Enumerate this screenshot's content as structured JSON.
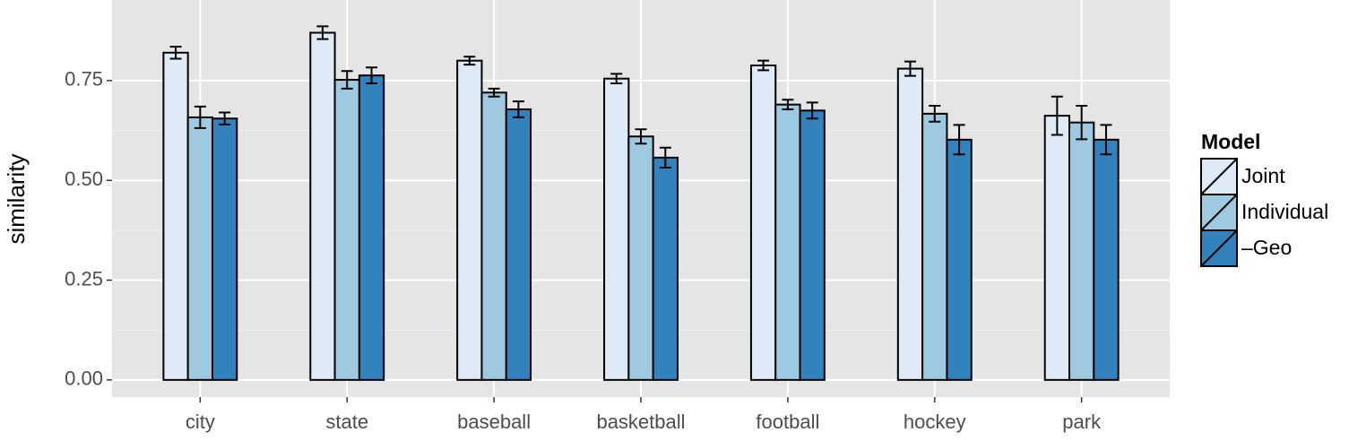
{
  "chart_data": {
    "type": "bar",
    "y_label": "similarity",
    "categories": [
      "city",
      "state",
      "baseball",
      "basketball",
      "football",
      "hockey",
      "park"
    ],
    "series": [
      {
        "name": "Joint",
        "color": "#deebf7",
        "values": [
          0.82,
          0.87,
          0.8,
          0.755,
          0.788,
          0.78,
          0.662
        ],
        "errors": [
          0.015,
          0.016,
          0.01,
          0.012,
          0.012,
          0.018,
          0.048
        ]
      },
      {
        "name": "Individual",
        "color": "#9ecae1",
        "values": [
          0.658,
          0.752,
          0.72,
          0.61,
          0.69,
          0.667,
          0.645
        ],
        "errors": [
          0.027,
          0.022,
          0.01,
          0.018,
          0.012,
          0.02,
          0.042
        ]
      },
      {
        "name": "–Geo",
        "color": "#3182bd",
        "values": [
          0.655,
          0.763,
          0.678,
          0.557,
          0.675,
          0.602,
          0.602
        ],
        "errors": [
          0.015,
          0.02,
          0.02,
          0.025,
          0.02,
          0.037,
          0.037
        ]
      }
    ],
    "legend_title": "Model",
    "ylim": [
      -0.043,
      0.952
    ],
    "yticks": [
      {
        "value": 0,
        "label": "0.00"
      },
      {
        "value": 0.25,
        "label": "0.25"
      },
      {
        "value": 0.5,
        "label": "0.50"
      },
      {
        "value": 0.75,
        "label": "0.75"
      }
    ],
    "grid": true
  }
}
